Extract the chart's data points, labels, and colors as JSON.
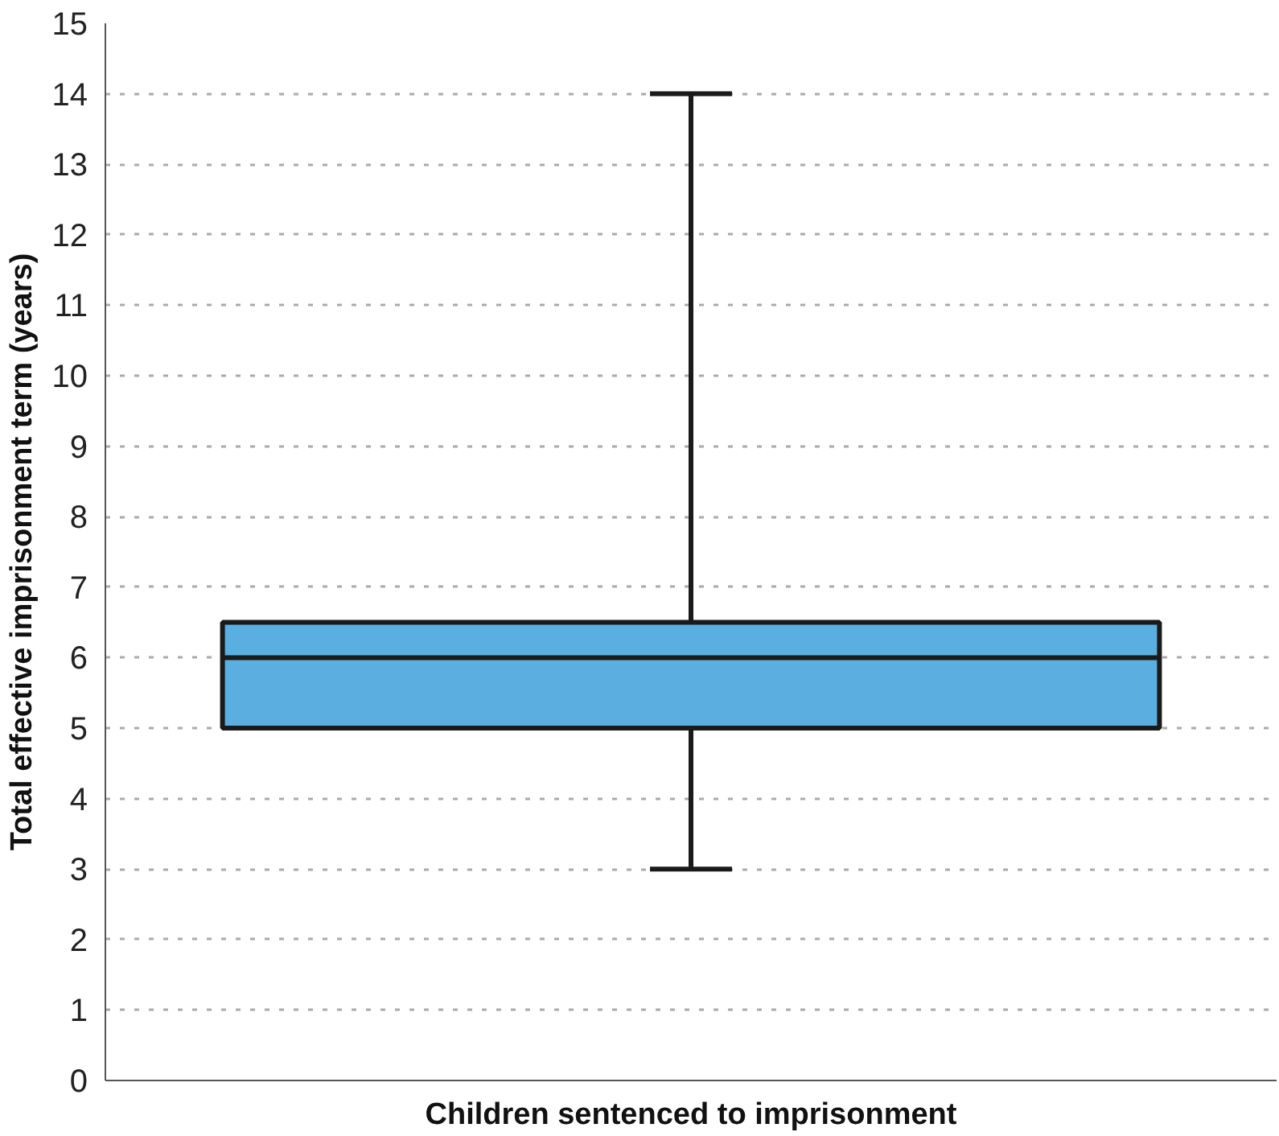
{
  "chart_data": {
    "type": "box",
    "xlabel": "Children sentenced to imprisonment",
    "ylabel": "Total effective imprisonment term (years)",
    "categories": [
      null
    ],
    "boxes": [
      {
        "low": 3,
        "q1": 5,
        "median": 6,
        "q3": 6.5,
        "high": 14
      }
    ],
    "colors": [
      "#5aaee0"
    ],
    "ylim": [
      0,
      15
    ],
    "yticks": [
      0,
      1,
      2,
      3,
      4,
      5,
      6,
      7,
      8,
      9,
      10,
      11,
      12,
      13,
      14,
      15
    ],
    "grid": "y"
  }
}
